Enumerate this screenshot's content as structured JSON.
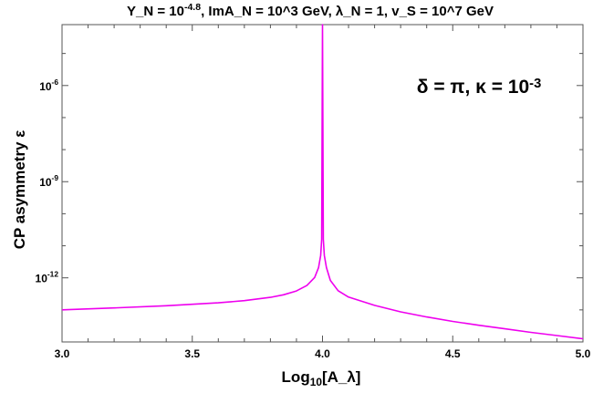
{
  "chart_data": {
    "type": "line",
    "title": "Y_N = 10^{-4.8}, ImA_N = 10^3 GeV, λ_N = 1, v_S = 10^7 GeV",
    "annotation": "δ = π, κ = 10^{-3}",
    "xlabel": "Log_{10}[A_λ]",
    "ylabel": "CP asymmetry ε",
    "xlim": [
      3.0,
      5.0
    ],
    "ylim_log10": [
      -14.0,
      -4.1
    ],
    "y_scale": "log",
    "grid": false,
    "x_ticks": [
      "3.0",
      "3.5",
      "4.0",
      "4.5",
      "5.0"
    ],
    "y_ticks": [
      {
        "exp": -6,
        "label": "10^{-6}"
      },
      {
        "exp": -9,
        "label": "10^{-9}"
      },
      {
        "exp": -12,
        "label": "10^{-12}"
      }
    ],
    "series": [
      {
        "color": "#ee00ee",
        "x": [
          3.0,
          3.2,
          3.4,
          3.6,
          3.7,
          3.8,
          3.85,
          3.9,
          3.94,
          3.97,
          3.985,
          3.993,
          3.997,
          4.0,
          4.003,
          4.007,
          4.015,
          4.03,
          4.06,
          4.1,
          4.2,
          4.3,
          4.4,
          4.5,
          4.6,
          4.7,
          4.8,
          4.9,
          5.0
        ],
        "log10y": [
          -13.0,
          -12.94,
          -12.87,
          -12.78,
          -12.71,
          -12.61,
          -12.53,
          -12.41,
          -12.24,
          -11.99,
          -11.68,
          -11.3,
          -10.8,
          -4.1,
          -10.8,
          -11.3,
          -11.68,
          -12.08,
          -12.4,
          -12.6,
          -12.86,
          -13.06,
          -13.22,
          -13.36,
          -13.48,
          -13.59,
          -13.7,
          -13.8,
          -13.9
        ]
      }
    ]
  }
}
